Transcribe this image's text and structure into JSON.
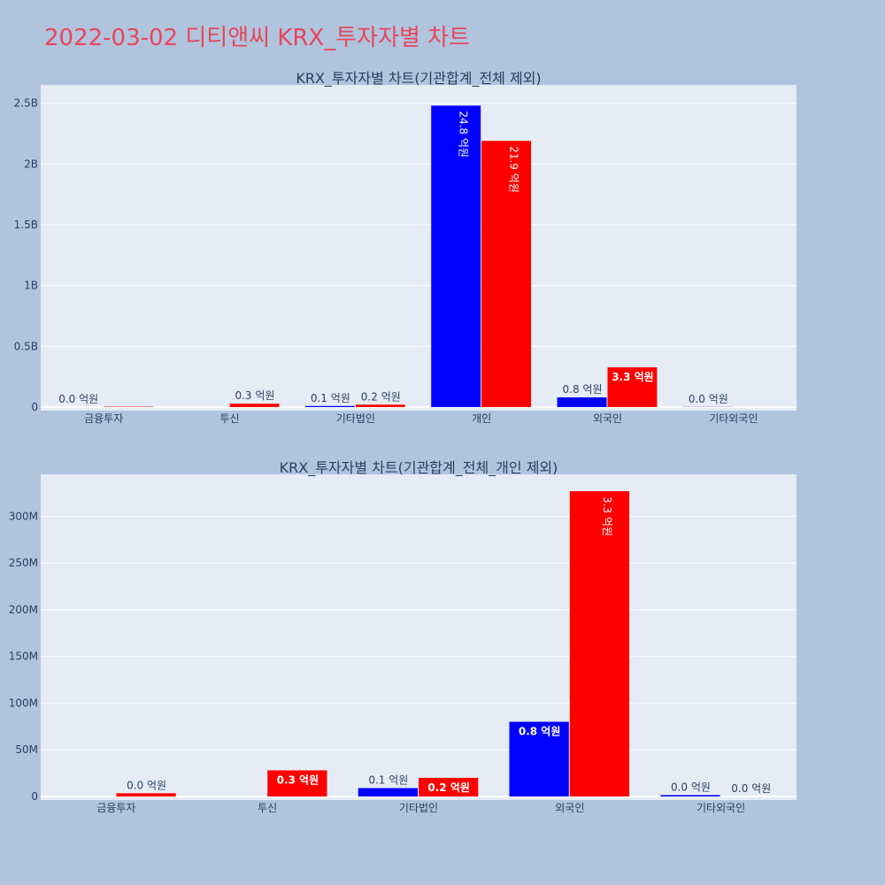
{
  "page": {
    "title": "2022-03-02 디티앤씨 KRX_투자자별 차트"
  },
  "colors": {
    "background": "#b0c4de",
    "plot_bg": "#e5ecf6",
    "series_a": "#0000ff",
    "series_b": "#ff0000",
    "title": "#e8465a",
    "text": "#2a3f5f"
  },
  "chart_data": [
    {
      "type": "bar",
      "title": "KRX_투자자별 차트(기관합계_전체 제외)",
      "categories": [
        "금융투자",
        "투신",
        "기타법인",
        "개인",
        "외국인",
        "기타외국인"
      ],
      "yticks": [
        0,
        500000000,
        1000000000,
        1500000000,
        2000000000,
        2500000000
      ],
      "ytick_labels": [
        "0",
        "0.5B",
        "1B",
        "1.5B",
        "2B",
        "2.5B"
      ],
      "ylim": [
        0,
        2650000000
      ],
      "series": [
        {
          "color": "#0000ff",
          "values": [
            0,
            0,
            9000000,
            2480000000,
            80000000,
            1500000
          ],
          "labels": [
            "0.0 억원",
            "",
            "0.1 억원",
            "24.8 억원",
            "0.8 억원",
            "0.0 억원"
          ]
        },
        {
          "color": "#ff0000",
          "values": [
            3500000,
            28000000,
            20000000,
            2190000000,
            327000000,
            0
          ],
          "labels": [
            "",
            "0.3 억원",
            "0.2 억원",
            "21.9 억원",
            "3.3 억원",
            ""
          ]
        }
      ]
    },
    {
      "type": "bar",
      "title": "KRX_투자자별 차트(기관합계_전체_개인 제외)",
      "categories": [
        "금융투자",
        "투신",
        "기타법인",
        "외국인",
        "기타외국인"
      ],
      "yticks": [
        0,
        50000000,
        100000000,
        150000000,
        200000000,
        250000000,
        300000000
      ],
      "ytick_labels": [
        "0",
        "50M",
        "100M",
        "150M",
        "200M",
        "250M",
        "300M"
      ],
      "ylim": [
        0,
        345000000
      ],
      "series": [
        {
          "color": "#0000ff",
          "values": [
            0,
            0,
            9000000,
            80000000,
            1500000
          ],
          "labels": [
            "",
            "",
            "0.1 억원",
            "0.8 억원",
            "0.0 억원"
          ]
        },
        {
          "color": "#ff0000",
          "values": [
            3500000,
            28000000,
            20000000,
            327000000,
            0
          ],
          "labels": [
            "0.0 억원",
            "0.3 억원",
            "0.2 억원",
            "3.3 억원",
            "0.0 억원"
          ]
        }
      ]
    }
  ]
}
